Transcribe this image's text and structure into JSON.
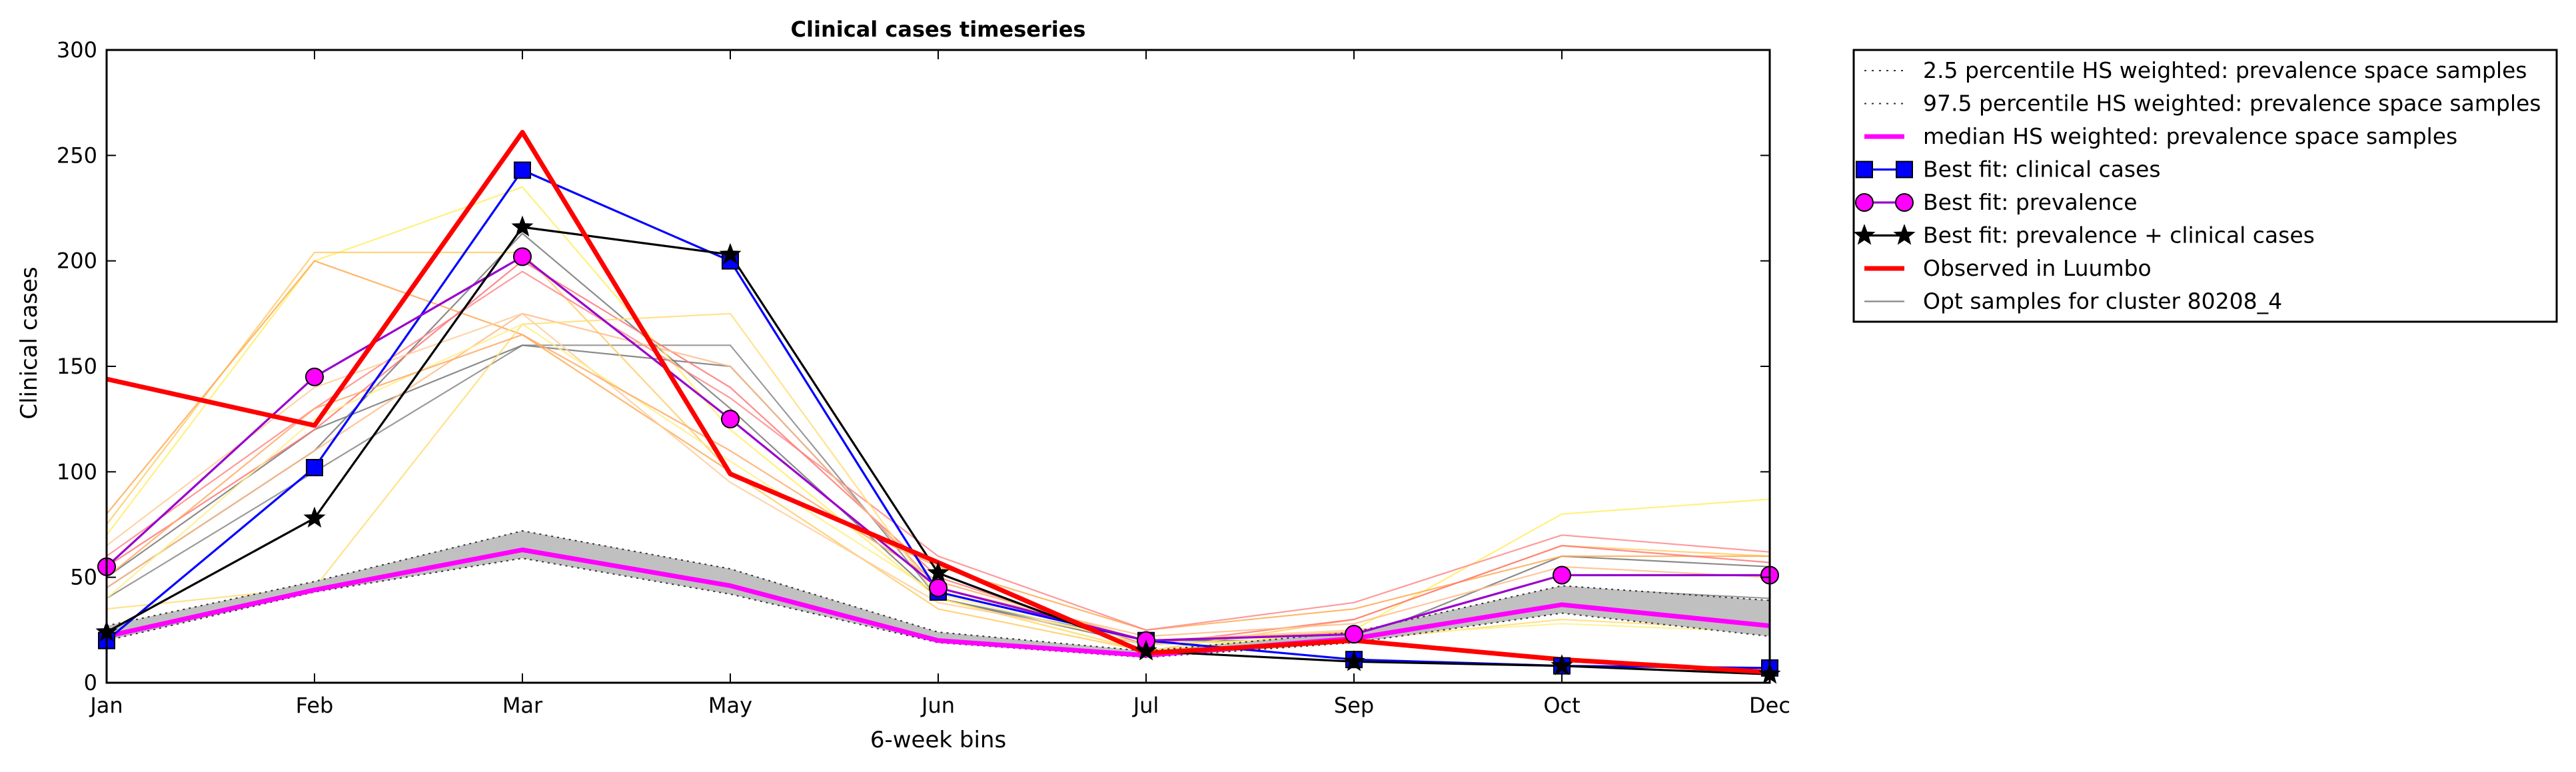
{
  "chart_data": {
    "type": "line",
    "title": "Clinical cases timeseries",
    "xlabel": "6-week bins",
    "ylabel": "Clinical cases",
    "categories": [
      "Jan",
      "Feb",
      "Mar",
      "May",
      "Jun",
      "Jul",
      "Sep",
      "Oct",
      "Dec"
    ],
    "ylim": [
      0,
      300
    ],
    "yticks": [
      "0",
      "50",
      "100",
      "150",
      "200",
      "250",
      "300"
    ],
    "grid": false,
    "legend_position": "outside-right",
    "band": {
      "name": "2.5 percentile HS weighted: prevalence space samples",
      "upper_name": "97.5 percentile HS weighted: prevalence space samples",
      "lower": [
        20,
        43,
        59,
        42,
        19,
        12,
        19,
        33,
        22
      ],
      "upper": [
        27,
        48,
        72,
        54,
        24,
        15,
        24,
        46,
        39
      ],
      "color": "#c0c0c0"
    },
    "series": [
      {
        "name": "median HS weighted: prevalence space samples",
        "color": "#ff00ff",
        "marker": "none",
        "style": "thick",
        "values": [
          22,
          44,
          63,
          46,
          20,
          13,
          21,
          37,
          27
        ]
      },
      {
        "name": "Best fit: clinical cases",
        "color": "#0000ff",
        "marker": "square",
        "style": "solid",
        "values": [
          20,
          102,
          243,
          200,
          43,
          20,
          11,
          8,
          7
        ]
      },
      {
        "name": "Best fit: prevalence",
        "color": "#ff00ff",
        "line_color": "#9900cc",
        "marker": "circle",
        "style": "solid",
        "values": [
          55,
          145,
          202,
          125,
          45,
          20,
          23,
          51,
          51
        ]
      },
      {
        "name": "Best fit: prevalence + clinical cases",
        "color": "#000000",
        "marker": "star",
        "style": "solid",
        "values": [
          24,
          78,
          216,
          203,
          52,
          15,
          10,
          8,
          4
        ]
      },
      {
        "name": "Observed in Luumbo",
        "color": "#ff0000",
        "marker": "none",
        "style": "bold",
        "values": [
          144,
          122,
          261,
          99,
          57,
          14,
          20,
          11,
          5
        ]
      }
    ],
    "samples_name": "Opt samples for cluster 80208_4",
    "samples": [
      {
        "color": "#888888",
        "values": [
          40,
          100,
          160,
          160,
          40,
          20,
          20,
          45,
          40
        ]
      },
      {
        "color": "#777777",
        "values": [
          45,
          110,
          213,
          130,
          40,
          18,
          22,
          40,
          35
        ]
      },
      {
        "color": "#777777",
        "values": [
          50,
          120,
          160,
          150,
          45,
          20,
          20,
          60,
          55
        ]
      },
      {
        "color": "#ffee66",
        "values": [
          70,
          200,
          235,
          120,
          40,
          15,
          25,
          80,
          87
        ]
      },
      {
        "color": "#ffcc66",
        "values": [
          75,
          204,
          204,
          100,
          35,
          15,
          30,
          65,
          60
        ]
      },
      {
        "color": "#ffaa55",
        "values": [
          80,
          200,
          165,
          100,
          55,
          25,
          35,
          60,
          60
        ]
      },
      {
        "color": "#ff8888",
        "values": [
          60,
          130,
          195,
          135,
          60,
          25,
          38,
          70,
          62
        ]
      },
      {
        "color": "#ff7777",
        "values": [
          55,
          120,
          200,
          140,
          50,
          18,
          30,
          65,
          57
        ]
      },
      {
        "color": "#ffbb88",
        "values": [
          45,
          110,
          175,
          150,
          45,
          22,
          28,
          55,
          50
        ]
      },
      {
        "color": "#ffdd77",
        "values": [
          35,
          45,
          170,
          175,
          40,
          15,
          20,
          30,
          25
        ]
      },
      {
        "color": "#ffcc99",
        "values": [
          65,
          140,
          175,
          95,
          38,
          20,
          25,
          35,
          30
        ]
      },
      {
        "color": "#ffee88",
        "values": [
          40,
          125,
          170,
          105,
          42,
          18,
          22,
          28,
          24
        ]
      },
      {
        "color": "#ffaa66",
        "values": [
          50,
          130,
          165,
          110,
          48,
          20,
          24,
          42,
          38
        ]
      }
    ]
  }
}
